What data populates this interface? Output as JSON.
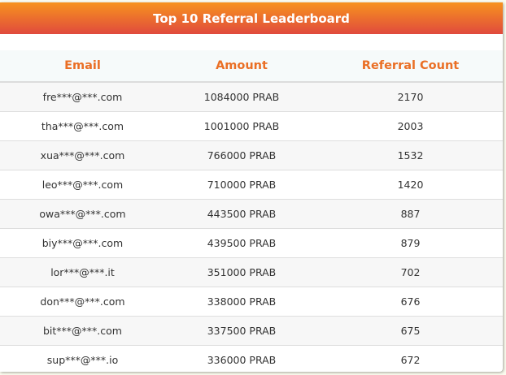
{
  "title": "Top 10 Referral Leaderboard",
  "colors": {
    "header_gradient_top": "#f7931e",
    "header_gradient_bottom": "#e04a3d",
    "column_header_text": "#ea6f25"
  },
  "columns": [
    "Email",
    "Amount",
    "Referral Count"
  ],
  "rows": [
    {
      "email": "fre***@***.com",
      "amount": "1084000 PRAB",
      "count": "2170"
    },
    {
      "email": "tha***@***.com",
      "amount": "1001000 PRAB",
      "count": "2003"
    },
    {
      "email": "xua***@***.com",
      "amount": "766000 PRAB",
      "count": "1532"
    },
    {
      "email": "leo***@***.com",
      "amount": "710000 PRAB",
      "count": "1420"
    },
    {
      "email": "owa***@***.com",
      "amount": "443500 PRAB",
      "count": "887"
    },
    {
      "email": "biy***@***.com",
      "amount": "439500 PRAB",
      "count": "879"
    },
    {
      "email": "lor***@***.it",
      "amount": "351000 PRAB",
      "count": "702"
    },
    {
      "email": "don***@***.com",
      "amount": "338000 PRAB",
      "count": "676"
    },
    {
      "email": "bit***@***.com",
      "amount": "337500 PRAB",
      "count": "675"
    },
    {
      "email": "sup***@***.io",
      "amount": "336000 PRAB",
      "count": "672"
    }
  ]
}
